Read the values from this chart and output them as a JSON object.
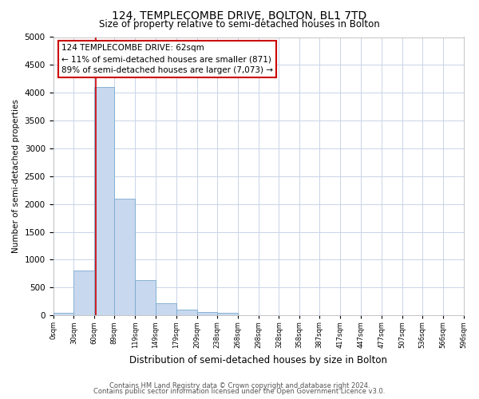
{
  "title1": "124, TEMPLECOMBE DRIVE, BOLTON, BL1 7TD",
  "title2": "Size of property relative to semi-detached houses in Bolton",
  "xlabel": "Distribution of semi-detached houses by size in Bolton",
  "ylabel": "Number of semi-detached properties",
  "footer1": "Contains HM Land Registry data © Crown copyright and database right 2024.",
  "footer2": "Contains public sector information licensed under the Open Government Licence v3.0.",
  "annotation_title": "124 TEMPLECOMBE DRIVE: 62sqm",
  "annotation_line1": "← 11% of semi-detached houses are smaller (871)",
  "annotation_line2": "89% of semi-detached houses are larger (7,073) →",
  "property_size": 62,
  "bin_edges": [
    0,
    30,
    60,
    89,
    119,
    149,
    179,
    209,
    238,
    268,
    298,
    328,
    358,
    387,
    417,
    447,
    477,
    507,
    536,
    566,
    596
  ],
  "bar_values": [
    50,
    800,
    4100,
    2100,
    630,
    220,
    100,
    60,
    40,
    8,
    3,
    1,
    0,
    0,
    0,
    0,
    0,
    0,
    0,
    0
  ],
  "bar_color": "#c8d8ee",
  "bar_edge_color": "#7aaad0",
  "vline_color": "#cc0000",
  "annotation_box_color": "#cc0000",
  "background_color": "#ffffff",
  "grid_color": "#c8d4e8",
  "ylim": [
    0,
    5000
  ],
  "yticks": [
    0,
    500,
    1000,
    1500,
    2000,
    2500,
    3000,
    3500,
    4000,
    4500,
    5000
  ],
  "tick_labels": [
    "0sqm",
    "30sqm",
    "60sqm",
    "89sqm",
    "119sqm",
    "149sqm",
    "179sqm",
    "209sqm",
    "238sqm",
    "268sqm",
    "298sqm",
    "328sqm",
    "358sqm",
    "387sqm",
    "417sqm",
    "447sqm",
    "477sqm",
    "507sqm",
    "536sqm",
    "566sqm",
    "596sqm"
  ],
  "title1_fontsize": 10,
  "title2_fontsize": 8.5,
  "ylabel_fontsize": 7.5,
  "xlabel_fontsize": 8.5,
  "ytick_fontsize": 7.5,
  "xtick_fontsize": 6,
  "annotation_fontsize": 7.5,
  "footer_fontsize": 6
}
